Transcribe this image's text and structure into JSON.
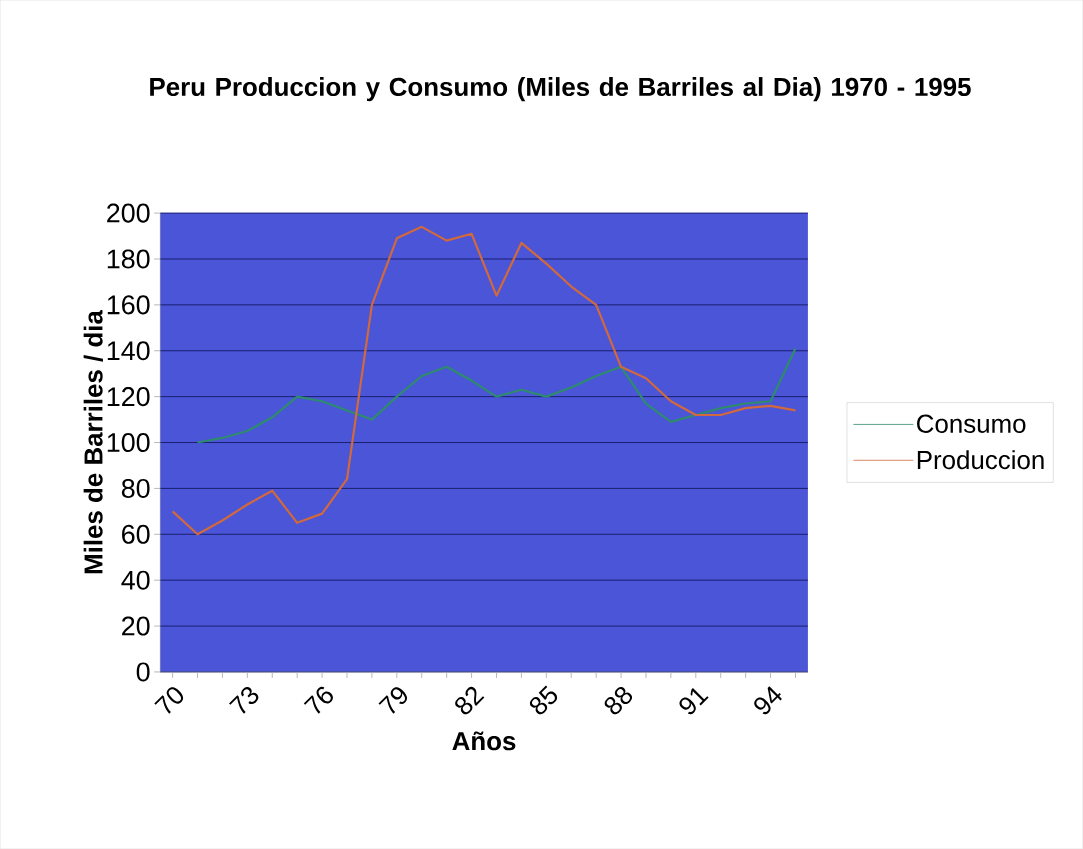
{
  "chart_data": {
    "type": "line",
    "title": "Peru Produccion y Consumo (Miles de Barriles al Dia) 1970 - 1995",
    "xlabel": "Años",
    "ylabel": "Miles de Barriles / dia",
    "categories": [
      "70",
      null,
      null,
      "73",
      null,
      null,
      "76",
      null,
      null,
      "79",
      null,
      null,
      "82",
      null,
      null,
      "85",
      null,
      null,
      "88",
      null,
      null,
      "91",
      null,
      null,
      "94",
      null
    ],
    "series": [
      {
        "name": "Consumo",
        "color": "#2e8b6e",
        "values": [
          null,
          100,
          102,
          105,
          111,
          120,
          118,
          114,
          110,
          120,
          129,
          133,
          127,
          120,
          123,
          120,
          124,
          129,
          133,
          117,
          109,
          112,
          115,
          117,
          118,
          141
        ]
      },
      {
        "name": "Produccion",
        "color": "#d2693c",
        "values": [
          70,
          60,
          66,
          73,
          79,
          65,
          69,
          84,
          160,
          189,
          194,
          188,
          191,
          164,
          187,
          178,
          168,
          160,
          133,
          128,
          118,
          112,
          112,
          115,
          116,
          114
        ]
      }
    ],
    "ylim": [
      0,
      200
    ],
    "yticks": [
      0,
      20,
      40,
      60,
      80,
      100,
      120,
      140,
      160,
      180,
      200
    ],
    "grid": "y",
    "legend": "right"
  }
}
